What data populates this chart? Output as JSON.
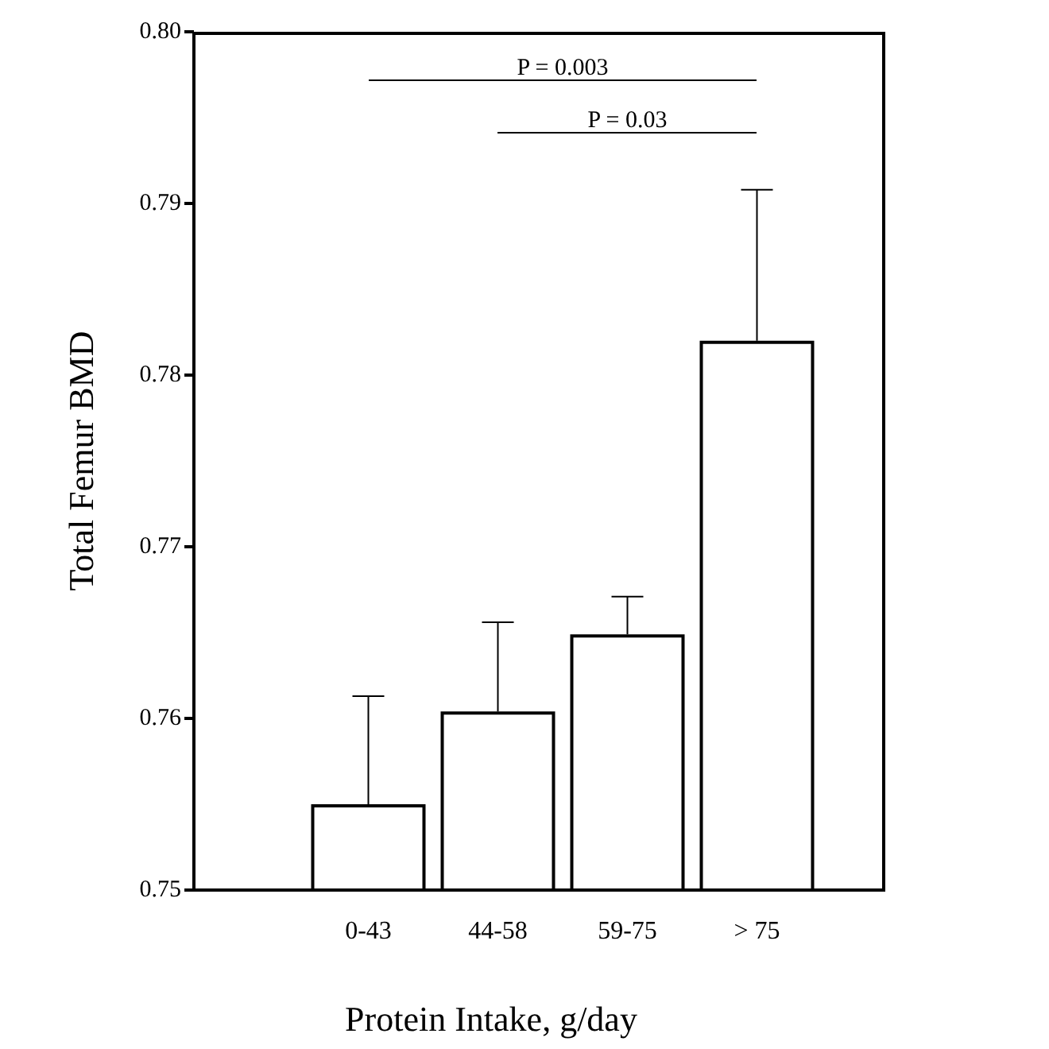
{
  "chart_data": {
    "type": "bar",
    "xlabel": "Protein Intake, g/day",
    "ylabel": "Total Femur BMD",
    "categories": [
      "0-43",
      "44-58",
      "59-75",
      "> 75"
    ],
    "values": [
      0.755,
      0.7604,
      0.7649,
      0.782
    ],
    "errors": [
      [
        0.755,
        0.7613
      ],
      [
        0.7604,
        0.7656
      ],
      [
        0.7649,
        0.7671
      ],
      [
        0.782,
        0.7908
      ]
    ],
    "color": "#ffffff",
    "ylim": [
      0.75,
      0.8
    ],
    "yticks": [
      0.75,
      0.76,
      0.77,
      0.78,
      0.79,
      {
        "value": 0.8,
        "label": "0.80"
      }
    ],
    "annotations": [
      "P = 0.003",
      "P = 0.03"
    ],
    "grid": false
  }
}
